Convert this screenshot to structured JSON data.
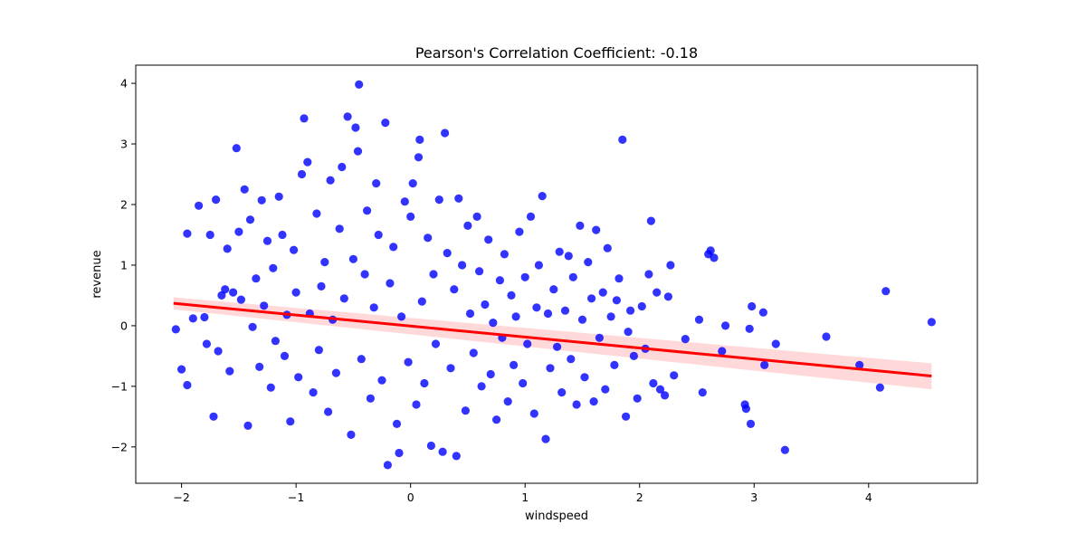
{
  "chart_data": {
    "type": "scatter",
    "title": "Pearson's Correlation Coefficient: -0.18",
    "xlabel": "windspeed",
    "ylabel": "revenue",
    "xlim": [
      -2.4,
      4.95
    ],
    "ylim": [
      -2.6,
      4.3
    ],
    "xticks": [
      -2,
      -1,
      0,
      1,
      2,
      3,
      4
    ],
    "yticks": [
      -2,
      -1,
      0,
      1,
      2,
      3,
      4
    ],
    "grid": false,
    "colors": {
      "points": "#0000ff",
      "regression_line": "#ff0000",
      "confidence_band": "#ffcccc"
    },
    "regression": {
      "x": [
        -2.07,
        4.55
      ],
      "y": [
        0.37,
        -0.83
      ],
      "ci_upper": [
        0.47,
        -0.62
      ],
      "ci_lower": [
        0.27,
        -1.05
      ]
    },
    "series": [
      {
        "points": [
          [
            -2.05,
            -0.06
          ],
          [
            -2.0,
            -0.72
          ],
          [
            -1.95,
            1.52
          ],
          [
            -1.9,
            0.12
          ],
          [
            -1.95,
            -0.98
          ],
          [
            -1.85,
            1.98
          ],
          [
            -1.8,
            0.14
          ],
          [
            -1.78,
            -0.3
          ],
          [
            -1.75,
            1.5
          ],
          [
            -1.72,
            -1.5
          ],
          [
            -1.7,
            2.08
          ],
          [
            -1.68,
            -0.42
          ],
          [
            -1.65,
            0.5
          ],
          [
            -1.62,
            0.6
          ],
          [
            -1.6,
            1.27
          ],
          [
            -1.58,
            -0.75
          ],
          [
            -1.55,
            0.55
          ],
          [
            -1.52,
            2.93
          ],
          [
            -1.5,
            1.55
          ],
          [
            -1.48,
            0.43
          ],
          [
            -1.45,
            2.25
          ],
          [
            -1.42,
            -1.65
          ],
          [
            -1.4,
            1.75
          ],
          [
            -1.38,
            -0.02
          ],
          [
            -1.35,
            0.78
          ],
          [
            -1.32,
            -0.68
          ],
          [
            -1.3,
            2.07
          ],
          [
            -1.28,
            0.33
          ],
          [
            -1.25,
            1.4
          ],
          [
            -1.22,
            -1.02
          ],
          [
            -1.2,
            0.95
          ],
          [
            -1.18,
            -0.25
          ],
          [
            -1.15,
            2.13
          ],
          [
            -1.12,
            1.5
          ],
          [
            -1.1,
            -0.5
          ],
          [
            -1.08,
            0.18
          ],
          [
            -1.05,
            -1.58
          ],
          [
            -1.02,
            1.25
          ],
          [
            -1.0,
            0.55
          ],
          [
            -0.98,
            -0.85
          ],
          [
            -0.95,
            2.5
          ],
          [
            -0.93,
            3.42
          ],
          [
            -0.9,
            2.7
          ],
          [
            -0.88,
            0.2
          ],
          [
            -0.85,
            -1.1
          ],
          [
            -0.82,
            1.85
          ],
          [
            -0.8,
            -0.4
          ],
          [
            -0.78,
            0.65
          ],
          [
            -0.75,
            1.05
          ],
          [
            -0.72,
            -1.42
          ],
          [
            -0.7,
            2.4
          ],
          [
            -0.68,
            0.1
          ],
          [
            -0.65,
            -0.78
          ],
          [
            -0.62,
            1.6
          ],
          [
            -0.6,
            2.62
          ],
          [
            -0.58,
            0.45
          ],
          [
            -0.55,
            3.45
          ],
          [
            -0.52,
            -1.8
          ],
          [
            -0.5,
            1.1
          ],
          [
            -0.48,
            3.27
          ],
          [
            -0.46,
            2.88
          ],
          [
            -0.45,
            3.98
          ],
          [
            -0.43,
            -0.55
          ],
          [
            -0.4,
            0.85
          ],
          [
            -0.38,
            1.9
          ],
          [
            -0.35,
            -1.2
          ],
          [
            -0.32,
            0.3
          ],
          [
            -0.3,
            2.35
          ],
          [
            -0.28,
            1.5
          ],
          [
            -0.25,
            -0.9
          ],
          [
            -0.22,
            3.35
          ],
          [
            -0.2,
            -2.3
          ],
          [
            -0.18,
            0.7
          ],
          [
            -0.15,
            1.3
          ],
          [
            -0.12,
            -1.62
          ],
          [
            -0.1,
            -2.1
          ],
          [
            -0.08,
            0.15
          ],
          [
            -0.05,
            2.05
          ],
          [
            -0.02,
            -0.6
          ],
          [
            0.0,
            1.8
          ],
          [
            0.02,
            2.35
          ],
          [
            0.05,
            -1.3
          ],
          [
            0.07,
            2.78
          ],
          [
            0.08,
            3.07
          ],
          [
            0.1,
            0.4
          ],
          [
            0.12,
            -0.95
          ],
          [
            0.15,
            1.45
          ],
          [
            0.18,
            -1.98
          ],
          [
            0.2,
            0.85
          ],
          [
            0.22,
            -0.3
          ],
          [
            0.25,
            2.08
          ],
          [
            0.28,
            -2.08
          ],
          [
            0.3,
            3.18
          ],
          [
            0.32,
            1.2
          ],
          [
            0.35,
            -0.7
          ],
          [
            0.38,
            0.6
          ],
          [
            0.4,
            -2.15
          ],
          [
            0.42,
            2.1
          ],
          [
            0.45,
            1.0
          ],
          [
            0.48,
            -1.4
          ],
          [
            0.5,
            1.65
          ],
          [
            0.52,
            0.2
          ],
          [
            0.55,
            -0.45
          ],
          [
            0.58,
            1.8
          ],
          [
            0.6,
            0.9
          ],
          [
            0.62,
            -1.0
          ],
          [
            0.65,
            0.35
          ],
          [
            0.68,
            1.42
          ],
          [
            0.7,
            -0.8
          ],
          [
            0.72,
            0.05
          ],
          [
            0.75,
            -1.55
          ],
          [
            0.78,
            0.75
          ],
          [
            0.8,
            -0.2
          ],
          [
            0.82,
            1.18
          ],
          [
            0.85,
            -1.25
          ],
          [
            0.88,
            0.5
          ],
          [
            0.9,
            -0.65
          ],
          [
            0.92,
            0.15
          ],
          [
            0.95,
            1.55
          ],
          [
            0.98,
            -0.95
          ],
          [
            1.0,
            0.8
          ],
          [
            1.02,
            -0.3
          ],
          [
            1.05,
            1.8
          ],
          [
            1.08,
            -1.45
          ],
          [
            1.1,
            0.3
          ],
          [
            1.12,
            1.0
          ],
          [
            1.15,
            2.14
          ],
          [
            1.18,
            -1.87
          ],
          [
            1.2,
            0.2
          ],
          [
            1.22,
            -0.7
          ],
          [
            1.25,
            0.6
          ],
          [
            1.28,
            -0.35
          ],
          [
            1.3,
            1.22
          ],
          [
            1.32,
            -1.1
          ],
          [
            1.35,
            0.25
          ],
          [
            1.38,
            1.15
          ],
          [
            1.4,
            -0.55
          ],
          [
            1.42,
            0.8
          ],
          [
            1.45,
            -1.3
          ],
          [
            1.48,
            1.65
          ],
          [
            1.5,
            0.1
          ],
          [
            1.52,
            -0.85
          ],
          [
            1.55,
            1.05
          ],
          [
            1.58,
            0.45
          ],
          [
            1.6,
            -1.25
          ],
          [
            1.62,
            1.58
          ],
          [
            1.65,
            -0.2
          ],
          [
            1.68,
            0.55
          ],
          [
            1.7,
            -1.05
          ],
          [
            1.72,
            1.28
          ],
          [
            1.75,
            0.15
          ],
          [
            1.78,
            -0.65
          ],
          [
            1.8,
            0.42
          ],
          [
            1.82,
            0.78
          ],
          [
            1.85,
            3.07
          ],
          [
            1.88,
            -1.5
          ],
          [
            1.9,
            -0.1
          ],
          [
            1.92,
            0.25
          ],
          [
            1.95,
            -0.5
          ],
          [
            1.98,
            -1.2
          ],
          [
            2.02,
            0.32
          ],
          [
            2.05,
            -0.38
          ],
          [
            2.08,
            0.85
          ],
          [
            2.1,
            1.73
          ],
          [
            2.12,
            -0.95
          ],
          [
            2.15,
            0.55
          ],
          [
            2.18,
            -1.05
          ],
          [
            2.22,
            -1.15
          ],
          [
            2.25,
            0.48
          ],
          [
            2.27,
            1.0
          ],
          [
            2.3,
            -0.82
          ],
          [
            2.4,
            -0.22
          ],
          [
            2.52,
            0.1
          ],
          [
            2.55,
            -1.1
          ],
          [
            2.6,
            1.18
          ],
          [
            2.62,
            1.24
          ],
          [
            2.65,
            1.12
          ],
          [
            2.72,
            -0.42
          ],
          [
            2.75,
            0.0
          ],
          [
            2.92,
            -1.3
          ],
          [
            2.93,
            -1.37
          ],
          [
            2.96,
            -0.05
          ],
          [
            2.97,
            -1.62
          ],
          [
            2.98,
            0.32
          ],
          [
            3.08,
            0.22
          ],
          [
            3.09,
            -0.65
          ],
          [
            3.19,
            -0.3
          ],
          [
            3.27,
            -2.05
          ],
          [
            3.63,
            -0.18
          ],
          [
            3.92,
            -0.65
          ],
          [
            4.1,
            -1.02
          ],
          [
            4.15,
            0.57
          ],
          [
            4.55,
            0.06
          ]
        ]
      }
    ]
  }
}
